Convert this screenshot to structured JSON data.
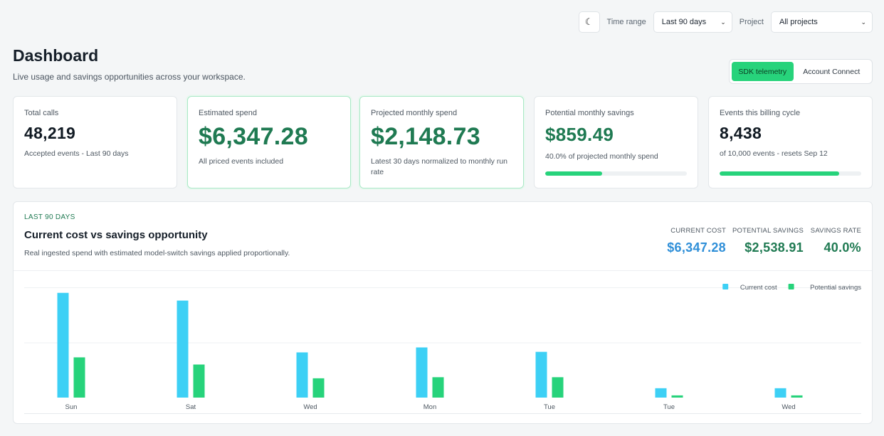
{
  "topbar": {
    "theme_icon": "moon-icon",
    "time_range_label": "Time range",
    "time_range_value": "Last 90 days",
    "project_label": "Project",
    "project_value": "All projects"
  },
  "header": {
    "title": "Dashboard",
    "subtitle": "Live usage and savings opportunities across your workspace."
  },
  "mode_toggle": {
    "active": "SDK telemetry",
    "inactive": "Account Connect"
  },
  "cards": [
    {
      "label": "Total calls",
      "value": "48,219",
      "note": "Accepted events - Last 90 days"
    },
    {
      "label": "Estimated spend",
      "value": "$6,347.28",
      "note": "All priced events included"
    },
    {
      "label": "Projected monthly spend",
      "value": "$2,148.73",
      "note": "Latest 30 days normalized to monthly run rate"
    },
    {
      "label": "Potential monthly savings",
      "value": "$859.49",
      "note": "40.0% of projected monthly spend",
      "progress": 0.4
    },
    {
      "label": "Events this billing cycle",
      "value": "8,438",
      "note": "of 10,000 events - resets Sep 12",
      "progress": 0.8438
    }
  ],
  "panel": {
    "eyebrow": "LAST 90 DAYS",
    "title": "Current cost vs savings opportunity",
    "description": "Real ingested spend with estimated model-switch savings applied proportionally.",
    "stats": [
      {
        "label": "CURRENT COST",
        "value": "$6,347.28",
        "color": "#2f8fd8"
      },
      {
        "label": "POTENTIAL SAVINGS",
        "value": "$2,538.91",
        "color": "#1f7a52"
      },
      {
        "label": "SAVINGS RATE",
        "value": "40.0%",
        "color": "#1f7a52"
      }
    ]
  },
  "chart_data": {
    "type": "bar",
    "categories": [
      "Sun",
      "Sat",
      "Wed",
      "Mon",
      "Tue",
      "Tue",
      "Wed"
    ],
    "series": [
      {
        "name": "Current cost",
        "color": "#3dd0f5",
        "values": [
          1900,
          1760,
          820,
          910,
          830,
          170,
          170
        ]
      },
      {
        "name": "Potential savings",
        "color": "#27d37b",
        "values": [
          730,
          600,
          350,
          370,
          370,
          40,
          40
        ]
      }
    ],
    "ylim": [
      0,
      2000
    ],
    "grid": true,
    "legend": "top-right"
  }
}
